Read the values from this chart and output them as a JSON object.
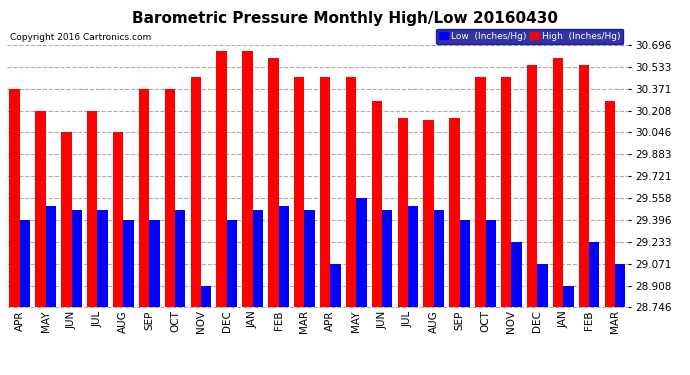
{
  "title": "Barometric Pressure Monthly High/Low 20160430",
  "copyright": "Copyright 2016 Cartronics.com",
  "legend_low": "Low  (Inches/Hg)",
  "legend_high": "High  (Inches/Hg)",
  "months": [
    "APR",
    "MAY",
    "JUN",
    "JUL",
    "AUG",
    "SEP",
    "OCT",
    "NOV",
    "DEC",
    "JAN",
    "FEB",
    "MAR",
    "APR",
    "MAY",
    "JUN",
    "JUL",
    "AUG",
    "SEP",
    "OCT",
    "NOV",
    "DEC",
    "JAN",
    "FEB",
    "MAR"
  ],
  "high_values": [
    30.371,
    30.208,
    30.046,
    30.208,
    30.046,
    30.371,
    30.371,
    30.46,
    30.65,
    30.65,
    30.6,
    30.46,
    30.46,
    30.46,
    30.28,
    30.15,
    30.14,
    30.15,
    30.46,
    30.46,
    30.55,
    30.6,
    30.55,
    30.28
  ],
  "low_values": [
    29.396,
    29.5,
    29.47,
    29.47,
    29.396,
    29.396,
    29.47,
    28.908,
    29.396,
    29.47,
    29.5,
    29.47,
    29.071,
    29.558,
    29.47,
    29.5,
    29.47,
    29.396,
    29.396,
    29.233,
    29.071,
    28.908,
    29.233,
    29.071
  ],
  "ymin": 28.746,
  "ymax": 30.696,
  "yticks": [
    28.746,
    28.908,
    29.071,
    29.233,
    29.396,
    29.558,
    29.721,
    29.883,
    30.046,
    30.208,
    30.371,
    30.533,
    30.696
  ],
  "high_color": "#ff0000",
  "low_color": "#0000ff",
  "bg_color": "#ffffff",
  "grid_color": "#aaaaaa",
  "title_fontsize": 11,
  "tick_fontsize": 7.5,
  "bar_width": 0.4
}
